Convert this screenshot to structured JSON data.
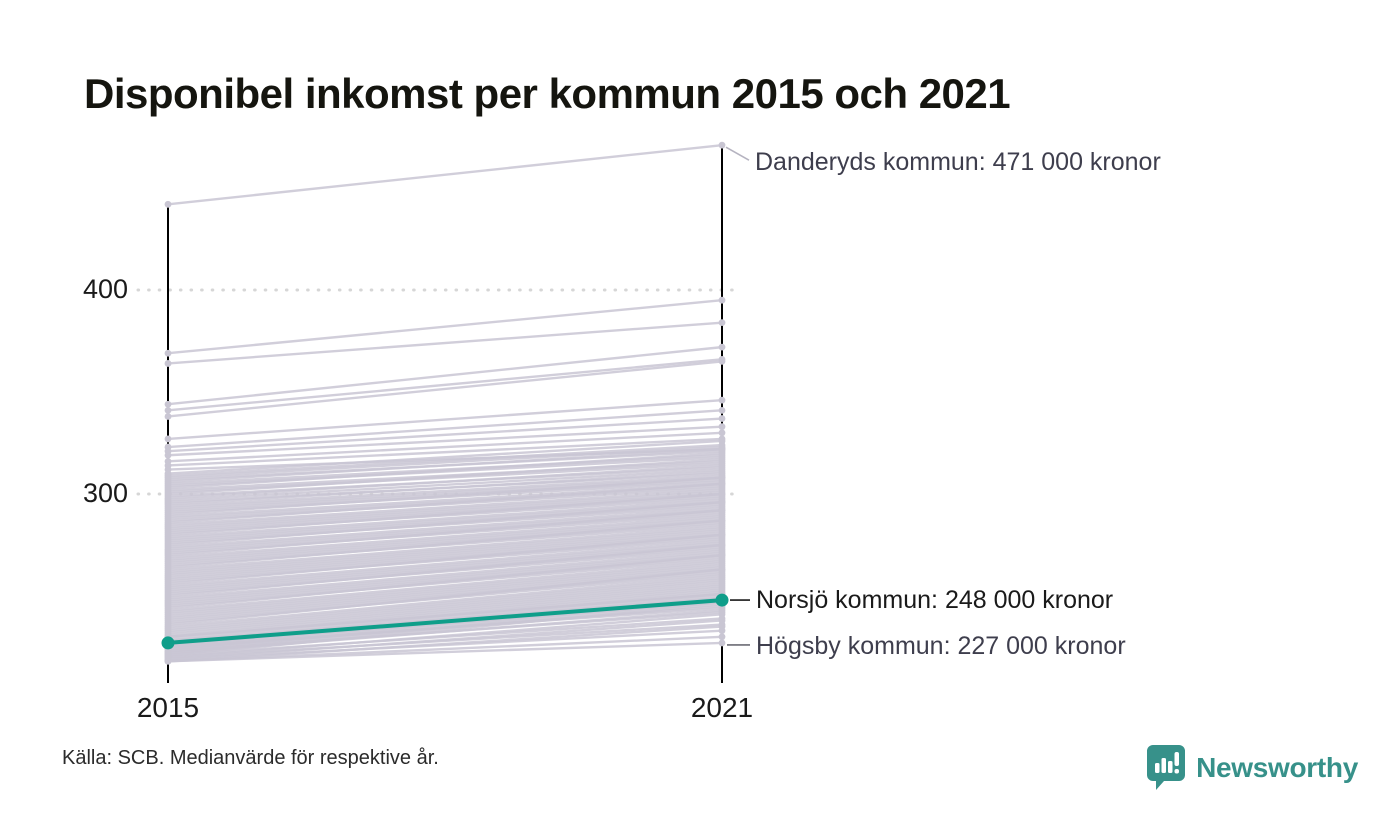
{
  "title": "Disponibel inkomst per kommun 2015 och 2021",
  "footer": {
    "source": "Källa: SCB. Medianvärde för respektive år."
  },
  "branding": {
    "wordmark": "Newsworthy",
    "logo_icon": "speech-bubble-bar-chart-icon"
  },
  "colors": {
    "highlight": "#0f9e8a",
    "background_line": "#c9c6d3",
    "axis": "#000000",
    "grid": "#d6d6d6",
    "annotation": "#3e3e4d",
    "annotation_dark": "#1a1a1a",
    "leader_light": "#b5b3c0",
    "leader_gray": "#6b6b75",
    "brand": "#37918a"
  },
  "chart_data": {
    "type": "line",
    "subtype": "slope-chart",
    "title": "Disponibel inkomst per kommun 2015 och 2021",
    "x_labels": [
      "2015",
      "2021"
    ],
    "x": [
      2015,
      2021
    ],
    "yticks": [
      400,
      300
    ],
    "ytick_labels": [
      "400",
      "300"
    ],
    "ylim": [
      210,
      480
    ],
    "grid": "dotted-horizontal",
    "legend_position": "none",
    "annotations": [
      {
        "text": "Danderyds kommun: 471 000 kronor",
        "anchor_value": 471,
        "anchor_year": 2021
      },
      {
        "text": "Norsjö kommun: 248 000 kronor",
        "anchor_value": 248,
        "anchor_year": 2021
      },
      {
        "text": "Högsby kommun: 227 000 kronor",
        "anchor_value": 227,
        "anchor_year": 2021
      }
    ],
    "series": [
      {
        "name": "Danderyds kommun",
        "values": [
          442,
          471
        ],
        "role": "annotated-top"
      },
      {
        "name": "Norsjö kommun",
        "values": [
          227,
          248
        ],
        "role": "highlight"
      },
      {
        "name": "Högsby kommun",
        "values": [
          218,
          227
        ],
        "role": "annotated-bottom"
      }
    ],
    "background_lines": [
      [
        369,
        395
      ],
      [
        364,
        384
      ],
      [
        344,
        372
      ],
      [
        341,
        366
      ],
      [
        338,
        365
      ],
      [
        327,
        346
      ],
      [
        323,
        341
      ],
      [
        321,
        337
      ],
      [
        319,
        333
      ],
      [
        316,
        330
      ],
      [
        314,
        327
      ],
      [
        312,
        322
      ],
      [
        310,
        326
      ],
      [
        309,
        324
      ],
      [
        308,
        323
      ],
      [
        307,
        321
      ],
      [
        306,
        322
      ],
      [
        305,
        319
      ],
      [
        304,
        318
      ],
      [
        303,
        320
      ],
      [
        302,
        316
      ],
      [
        301,
        315
      ],
      [
        300,
        317
      ],
      [
        299,
        313
      ],
      [
        298,
        314
      ],
      [
        297,
        312
      ],
      [
        296,
        310
      ],
      [
        295,
        311
      ],
      [
        294,
        309
      ],
      [
        293,
        308
      ],
      [
        292,
        307
      ],
      [
        291,
        306
      ],
      [
        290,
        308
      ],
      [
        289,
        305
      ],
      [
        288,
        304
      ],
      [
        287,
        303
      ],
      [
        286,
        305
      ],
      [
        285,
        302
      ],
      [
        284,
        301
      ],
      [
        283,
        300
      ],
      [
        282,
        299
      ],
      [
        281,
        298
      ],
      [
        280,
        300
      ],
      [
        279,
        297
      ],
      [
        278,
        296
      ],
      [
        277,
        295
      ],
      [
        276,
        294
      ],
      [
        275,
        296
      ],
      [
        274,
        293
      ],
      [
        273,
        292
      ],
      [
        272,
        291
      ],
      [
        271,
        290
      ],
      [
        270,
        292
      ],
      [
        269,
        289
      ],
      [
        268,
        288
      ],
      [
        267,
        287
      ],
      [
        266,
        286
      ],
      [
        265,
        285
      ],
      [
        264,
        287
      ],
      [
        263,
        284
      ],
      [
        262,
        283
      ],
      [
        261,
        282
      ],
      [
        260,
        281
      ],
      [
        259,
        280
      ],
      [
        258,
        279
      ],
      [
        257,
        278
      ],
      [
        256,
        280
      ],
      [
        255,
        277
      ],
      [
        254,
        276
      ],
      [
        253,
        275
      ],
      [
        252,
        274
      ],
      [
        251,
        273
      ],
      [
        250,
        275
      ],
      [
        249,
        272
      ],
      [
        248,
        271
      ],
      [
        247,
        270
      ],
      [
        246,
        269
      ],
      [
        245,
        268
      ],
      [
        244,
        270
      ],
      [
        243,
        267
      ],
      [
        242,
        266
      ],
      [
        241,
        265
      ],
      [
        240,
        264
      ],
      [
        239,
        263
      ],
      [
        238,
        262
      ],
      [
        237,
        261
      ],
      [
        236,
        263
      ],
      [
        235,
        260
      ],
      [
        234,
        259
      ],
      [
        233,
        258
      ],
      [
        232,
        257
      ],
      [
        231,
        256
      ],
      [
        230,
        255
      ],
      [
        229,
        254
      ],
      [
        228,
        253
      ],
      [
        227,
        252
      ],
      [
        226,
        251
      ],
      [
        225,
        250
      ],
      [
        224,
        249
      ],
      [
        223,
        248
      ],
      [
        222,
        247
      ],
      [
        221,
        246
      ],
      [
        230,
        251
      ],
      [
        228,
        249
      ],
      [
        226,
        247
      ],
      [
        224,
        245
      ],
      [
        222,
        243
      ],
      [
        220,
        241
      ],
      [
        219,
        238
      ],
      [
        218,
        235
      ],
      [
        220,
        236
      ],
      [
        219,
        233
      ],
      [
        218,
        230
      ],
      [
        221,
        239
      ],
      [
        223,
        242
      ],
      [
        225,
        244
      ]
    ]
  }
}
